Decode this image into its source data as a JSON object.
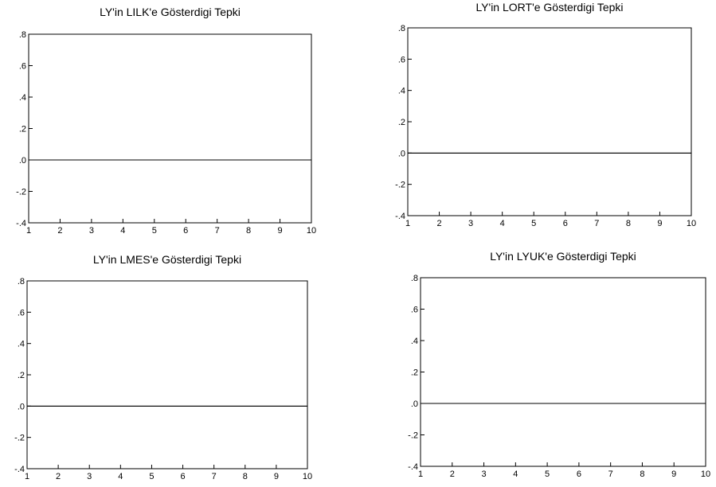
{
  "chart_data": [
    {
      "type": "line",
      "title": "LY'in LILK'e Gösterdigi Tepki",
      "x": [
        1,
        2,
        3,
        4,
        5,
        6,
        7,
        8,
        9,
        10
      ],
      "series": [
        {
          "values": [
            0,
            0,
            0,
            0,
            0,
            0,
            0,
            0,
            0,
            0
          ]
        }
      ],
      "ylim": [
        -0.4,
        0.8
      ],
      "yticks": [
        0.8,
        0.6,
        0.4,
        0.2,
        0.0,
        -0.2,
        -0.4
      ],
      "ytick_labels": [
        ".8",
        ".6",
        ".4",
        ".2",
        ".0",
        "-.2",
        "-.4"
      ],
      "xtick_labels": [
        "1",
        "2",
        "3",
        "4",
        "5",
        "6",
        "7",
        "8",
        "9",
        "10"
      ],
      "grid": false
    },
    {
      "type": "line",
      "title": "LY'in LORT'e Gösterdigi Tepki",
      "x": [
        1,
        2,
        3,
        4,
        5,
        6,
        7,
        8,
        9,
        10
      ],
      "series": [
        {
          "values": [
            0,
            0,
            0,
            0,
            0,
            0,
            0,
            0,
            0,
            0
          ]
        }
      ],
      "ylim": [
        -0.4,
        0.8
      ],
      "yticks": [
        0.8,
        0.6,
        0.4,
        0.2,
        0.0,
        -0.2,
        -0.4
      ],
      "ytick_labels": [
        ".8",
        ".6",
        ".4",
        ".2",
        ".0",
        "-.2",
        "-.4"
      ],
      "xtick_labels": [
        "1",
        "2",
        "3",
        "4",
        "5",
        "6",
        "7",
        "8",
        "9",
        "10"
      ],
      "grid": false
    },
    {
      "type": "line",
      "title": "LY'in LMES'e Gösterdigi Tepki",
      "x": [
        1,
        2,
        3,
        4,
        5,
        6,
        7,
        8,
        9,
        10
      ],
      "series": [
        {
          "values": [
            0,
            0,
            0,
            0,
            0,
            0,
            0,
            0,
            0,
            0
          ]
        }
      ],
      "ylim": [
        -0.4,
        0.8
      ],
      "yticks": [
        0.8,
        0.6,
        0.4,
        0.2,
        0.0,
        -0.2,
        -0.4
      ],
      "ytick_labels": [
        ".8",
        ".6",
        ".4",
        ".2",
        ".0",
        "-.2",
        "-.4"
      ],
      "xtick_labels": [
        "1",
        "2",
        "3",
        "4",
        "5",
        "6",
        "7",
        "8",
        "9",
        "10"
      ],
      "grid": false
    },
    {
      "type": "line",
      "title": "LY'in LYUK'e Gösterdigi Tepki",
      "x": [
        1,
        2,
        3,
        4,
        5,
        6,
        7,
        8,
        9,
        10
      ],
      "series": [
        {
          "values": [
            0,
            0,
            0,
            0,
            0,
            0,
            0,
            0,
            0,
            0
          ]
        }
      ],
      "ylim": [
        -0.4,
        0.8
      ],
      "yticks": [
        0.8,
        0.6,
        0.4,
        0.2,
        0.0,
        -0.2,
        -0.4
      ],
      "ytick_labels": [
        ".8",
        ".6",
        ".4",
        ".2",
        ".0",
        "-.2",
        "-.4"
      ],
      "xtick_labels": [
        "1",
        "2",
        "3",
        "4",
        "5",
        "6",
        "7",
        "8",
        "9",
        "10"
      ],
      "grid": false
    }
  ]
}
